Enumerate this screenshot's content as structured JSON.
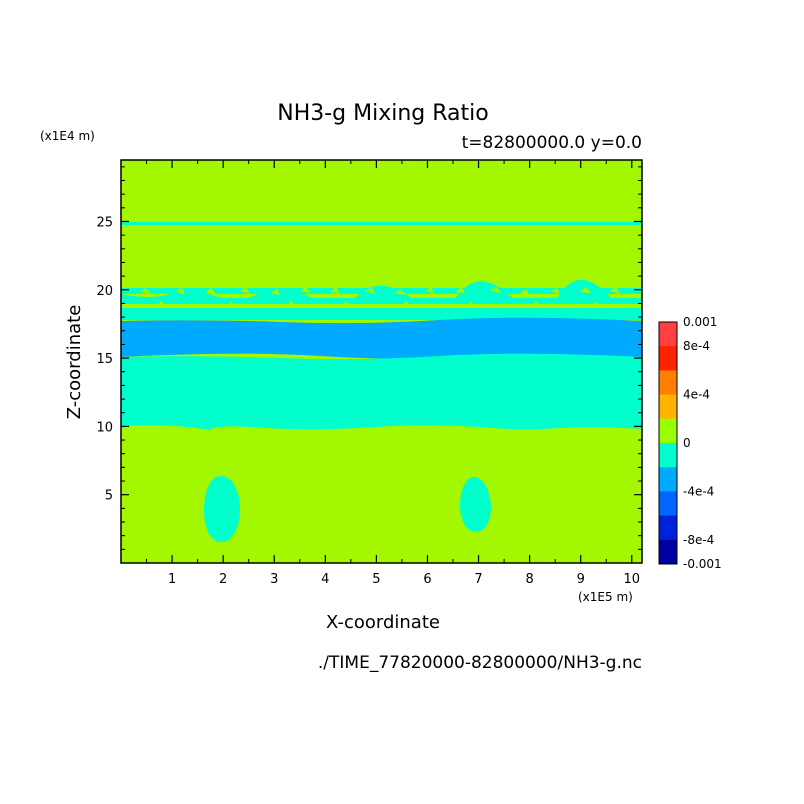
{
  "chart_data": {
    "type": "heatmap",
    "title": "NH3-g Mixing Ratio",
    "subtitle": "t=82800000.0 y=0.0",
    "xlabel": "X-coordinate",
    "ylabel": "Z-coordinate",
    "x_unit": "(x1E5 m)",
    "y_unit": "(x1E4 m)",
    "xlim": [
      0,
      10.2
    ],
    "ylim": [
      0,
      29.5
    ],
    "x_ticks": [
      "1",
      "2",
      "3",
      "4",
      "5",
      "6",
      "7",
      "8",
      "9",
      "10"
    ],
    "y_ticks": [
      "5",
      "10",
      "15",
      "20",
      "25"
    ],
    "footer": "./TIME_77820000-82800000/NH3-g.nc",
    "colorbar": {
      "labels": [
        "0.001",
        "8e-4",
        "4e-4",
        "0",
        "-4e-4",
        "-8e-4",
        "-0.001"
      ],
      "colors": [
        "#ff4040",
        "#ff2200",
        "#ff8000",
        "#ffb400",
        "#99ff00",
        "#00ffcc",
        "#00aaff",
        "#0066ff",
        "#0022dd",
        "#0000a0"
      ]
    },
    "regions": [
      {
        "name": "background",
        "value": "0",
        "color": "#a3f700"
      },
      {
        "name": "thin layer",
        "z": [
          25.1,
          25.3
        ],
        "value": "-4e-4 to 0",
        "color": "#00ffcc"
      },
      {
        "name": "turbulent band",
        "z": [
          18.8,
          20.4
        ],
        "value": "-4e-4 to 0",
        "color": "#00ffcc"
      },
      {
        "name": "band",
        "z": [
          15.4,
          18.0
        ],
        "value": "-4e-4",
        "color": "#00aaff"
      },
      {
        "name": "band",
        "z": [
          10.2,
          15.4
        ],
        "value": "-4e-4 to 0",
        "color": "#00ffcc"
      },
      {
        "name": "blob",
        "x": 2.0,
        "z": 4.2,
        "value": "-4e-4 to 0",
        "color": "#00ffcc"
      },
      {
        "name": "blob",
        "x": 6.95,
        "z": 4.4,
        "value": "-4e-4 to 0",
        "color": "#00ffcc"
      }
    ]
  }
}
